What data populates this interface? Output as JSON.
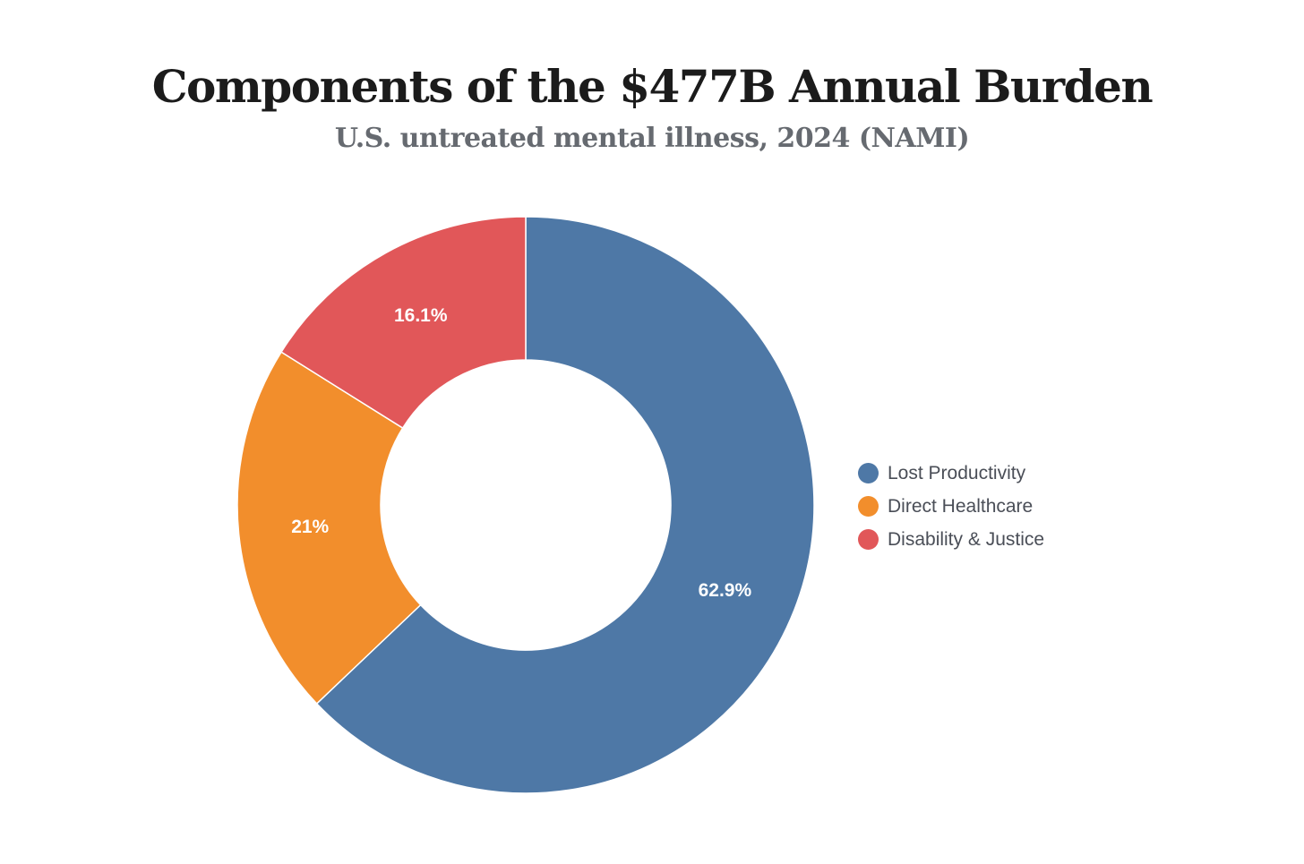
{
  "header": {
    "title": "Components of the $477B Annual Burden",
    "subtitle": "U.S. untreated mental illness, 2024 (NAMI)"
  },
  "chart_data": {
    "type": "pie",
    "variant": "donut",
    "title": "Components of the $477B Annual Burden",
    "subtitle": "U.S. untreated mental illness, 2024 (NAMI)",
    "slices": [
      {
        "name": "Lost Productivity",
        "value": 62.9,
        "label": "62.9%",
        "color": "#4e78a6"
      },
      {
        "name": "Direct Healthcare",
        "value": 21.0,
        "label": "21%",
        "color": "#f28e2c"
      },
      {
        "name": "Disability & Justice",
        "value": 16.1,
        "label": "16.1%",
        "color": "#e15759"
      }
    ],
    "legend_position": "right"
  }
}
